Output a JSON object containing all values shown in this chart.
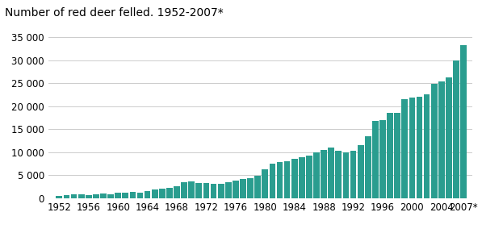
{
  "title": "Number of red deer felled. 1952-2007*",
  "bar_color": "#2a9d8f",
  "background_color": "#ffffff",
  "grid_color": "#cccccc",
  "years": [
    1952,
    1953,
    1954,
    1955,
    1956,
    1957,
    1958,
    1959,
    1960,
    1961,
    1962,
    1963,
    1964,
    1965,
    1966,
    1967,
    1968,
    1969,
    1970,
    1971,
    1972,
    1973,
    1974,
    1975,
    1976,
    1977,
    1978,
    1979,
    1980,
    1981,
    1982,
    1983,
    1984,
    1985,
    1986,
    1987,
    1988,
    1989,
    1990,
    1991,
    1992,
    1993,
    1994,
    1995,
    1996,
    1997,
    1998,
    1999,
    2000,
    2001,
    2002,
    2003,
    2004,
    2005,
    2006,
    2007
  ],
  "values": [
    400,
    700,
    900,
    800,
    600,
    900,
    1000,
    900,
    1100,
    1200,
    1300,
    1100,
    1500,
    1800,
    2000,
    2200,
    2600,
    3500,
    3600,
    3300,
    3300,
    3100,
    3100,
    3400,
    3800,
    4200,
    4400,
    4900,
    6200,
    7500,
    7800,
    8000,
    8500,
    8900,
    9200,
    10000,
    10500,
    11000,
    10300,
    10000,
    10300,
    11500,
    13500,
    16800,
    16900,
    18500,
    18500,
    21500,
    21800,
    22100,
    22600,
    24800,
    25400,
    26300,
    29900,
    33200
  ],
  "xtick_labels": [
    "1952",
    "1956",
    "1960",
    "1964",
    "1968",
    "1972",
    "1976",
    "1980",
    "1984",
    "1988",
    "1992",
    "1996",
    "2000",
    "2004",
    "2007*"
  ],
  "xtick_positions": [
    1952,
    1956,
    1960,
    1964,
    1968,
    1972,
    1976,
    1980,
    1984,
    1988,
    1992,
    1996,
    2000,
    2004,
    2007
  ],
  "ytick_labels": [
    "0",
    "5 000",
    "10 000",
    "15 000",
    "20 000",
    "25 000",
    "30 000",
    "35 000"
  ],
  "ytick_values": [
    0,
    5000,
    10000,
    15000,
    20000,
    25000,
    30000,
    35000
  ],
  "ylim": [
    0,
    36500
  ],
  "title_fontsize": 10,
  "tick_fontsize": 8.5
}
